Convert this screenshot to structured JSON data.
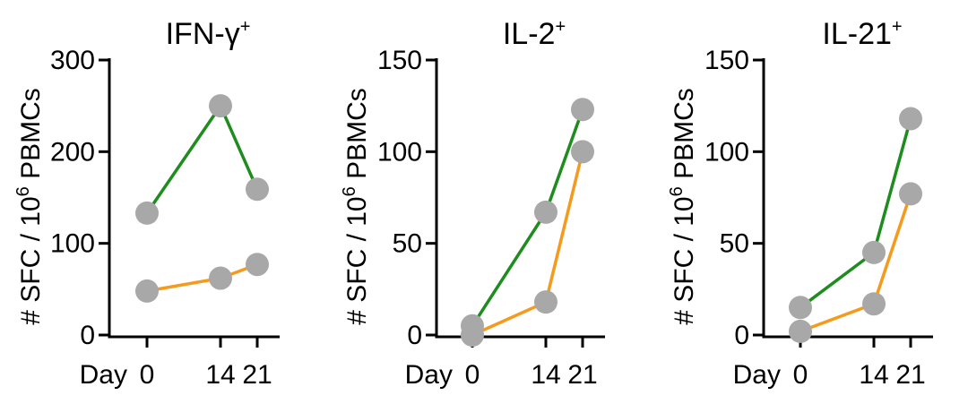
{
  "chart_data": [
    {
      "type": "line",
      "title": "IFN-γ",
      "title_superscript": "+",
      "ylabel": "# SFC / 10",
      "ylabel_superscript": "6",
      "ylabel_suffix": " PBMCs",
      "xlabel": "Day",
      "x": [
        0,
        14,
        21
      ],
      "x_tick_labels": [
        "0",
        "14",
        "21"
      ],
      "ylim": [
        0,
        300
      ],
      "y_ticks": [
        0,
        100,
        200,
        300
      ],
      "y_tick_labels": [
        "0",
        "100",
        "200",
        "300"
      ],
      "series": [
        {
          "color": "#1e8c1e",
          "values": [
            133,
            250,
            159
          ]
        },
        {
          "color": "#f59a1c",
          "values": [
            48,
            62,
            77
          ]
        }
      ]
    },
    {
      "type": "line",
      "title": "IL-2",
      "title_superscript": "+",
      "ylabel": "# SFC / 10",
      "ylabel_superscript": "6",
      "ylabel_suffix": " PBMCs",
      "xlabel": "Day",
      "x": [
        0,
        14,
        21
      ],
      "x_tick_labels": [
        "0",
        "14",
        "21"
      ],
      "ylim": [
        0,
        150
      ],
      "y_ticks": [
        0,
        50,
        100,
        150
      ],
      "y_tick_labels": [
        "0",
        "50",
        "100",
        "150"
      ],
      "series": [
        {
          "color": "#1e8c1e",
          "values": [
            5,
            67,
            123
          ]
        },
        {
          "color": "#f59a1c",
          "values": [
            0,
            18,
            100
          ]
        }
      ]
    },
    {
      "type": "line",
      "title": "IL-21",
      "title_superscript": "+",
      "ylabel": "# SFC / 10",
      "ylabel_superscript": "6",
      "ylabel_suffix": " PBMCs",
      "xlabel": "Day",
      "x": [
        0,
        14,
        21
      ],
      "x_tick_labels": [
        "0",
        "14",
        "21"
      ],
      "ylim": [
        0,
        150
      ],
      "y_ticks": [
        0,
        50,
        100,
        150
      ],
      "y_tick_labels": [
        "0",
        "50",
        "100",
        "150"
      ],
      "series": [
        {
          "color": "#1e8c1e",
          "values": [
            15,
            45,
            118
          ]
        },
        {
          "color": "#f59a1c",
          "values": [
            2,
            17,
            77
          ]
        }
      ]
    }
  ]
}
